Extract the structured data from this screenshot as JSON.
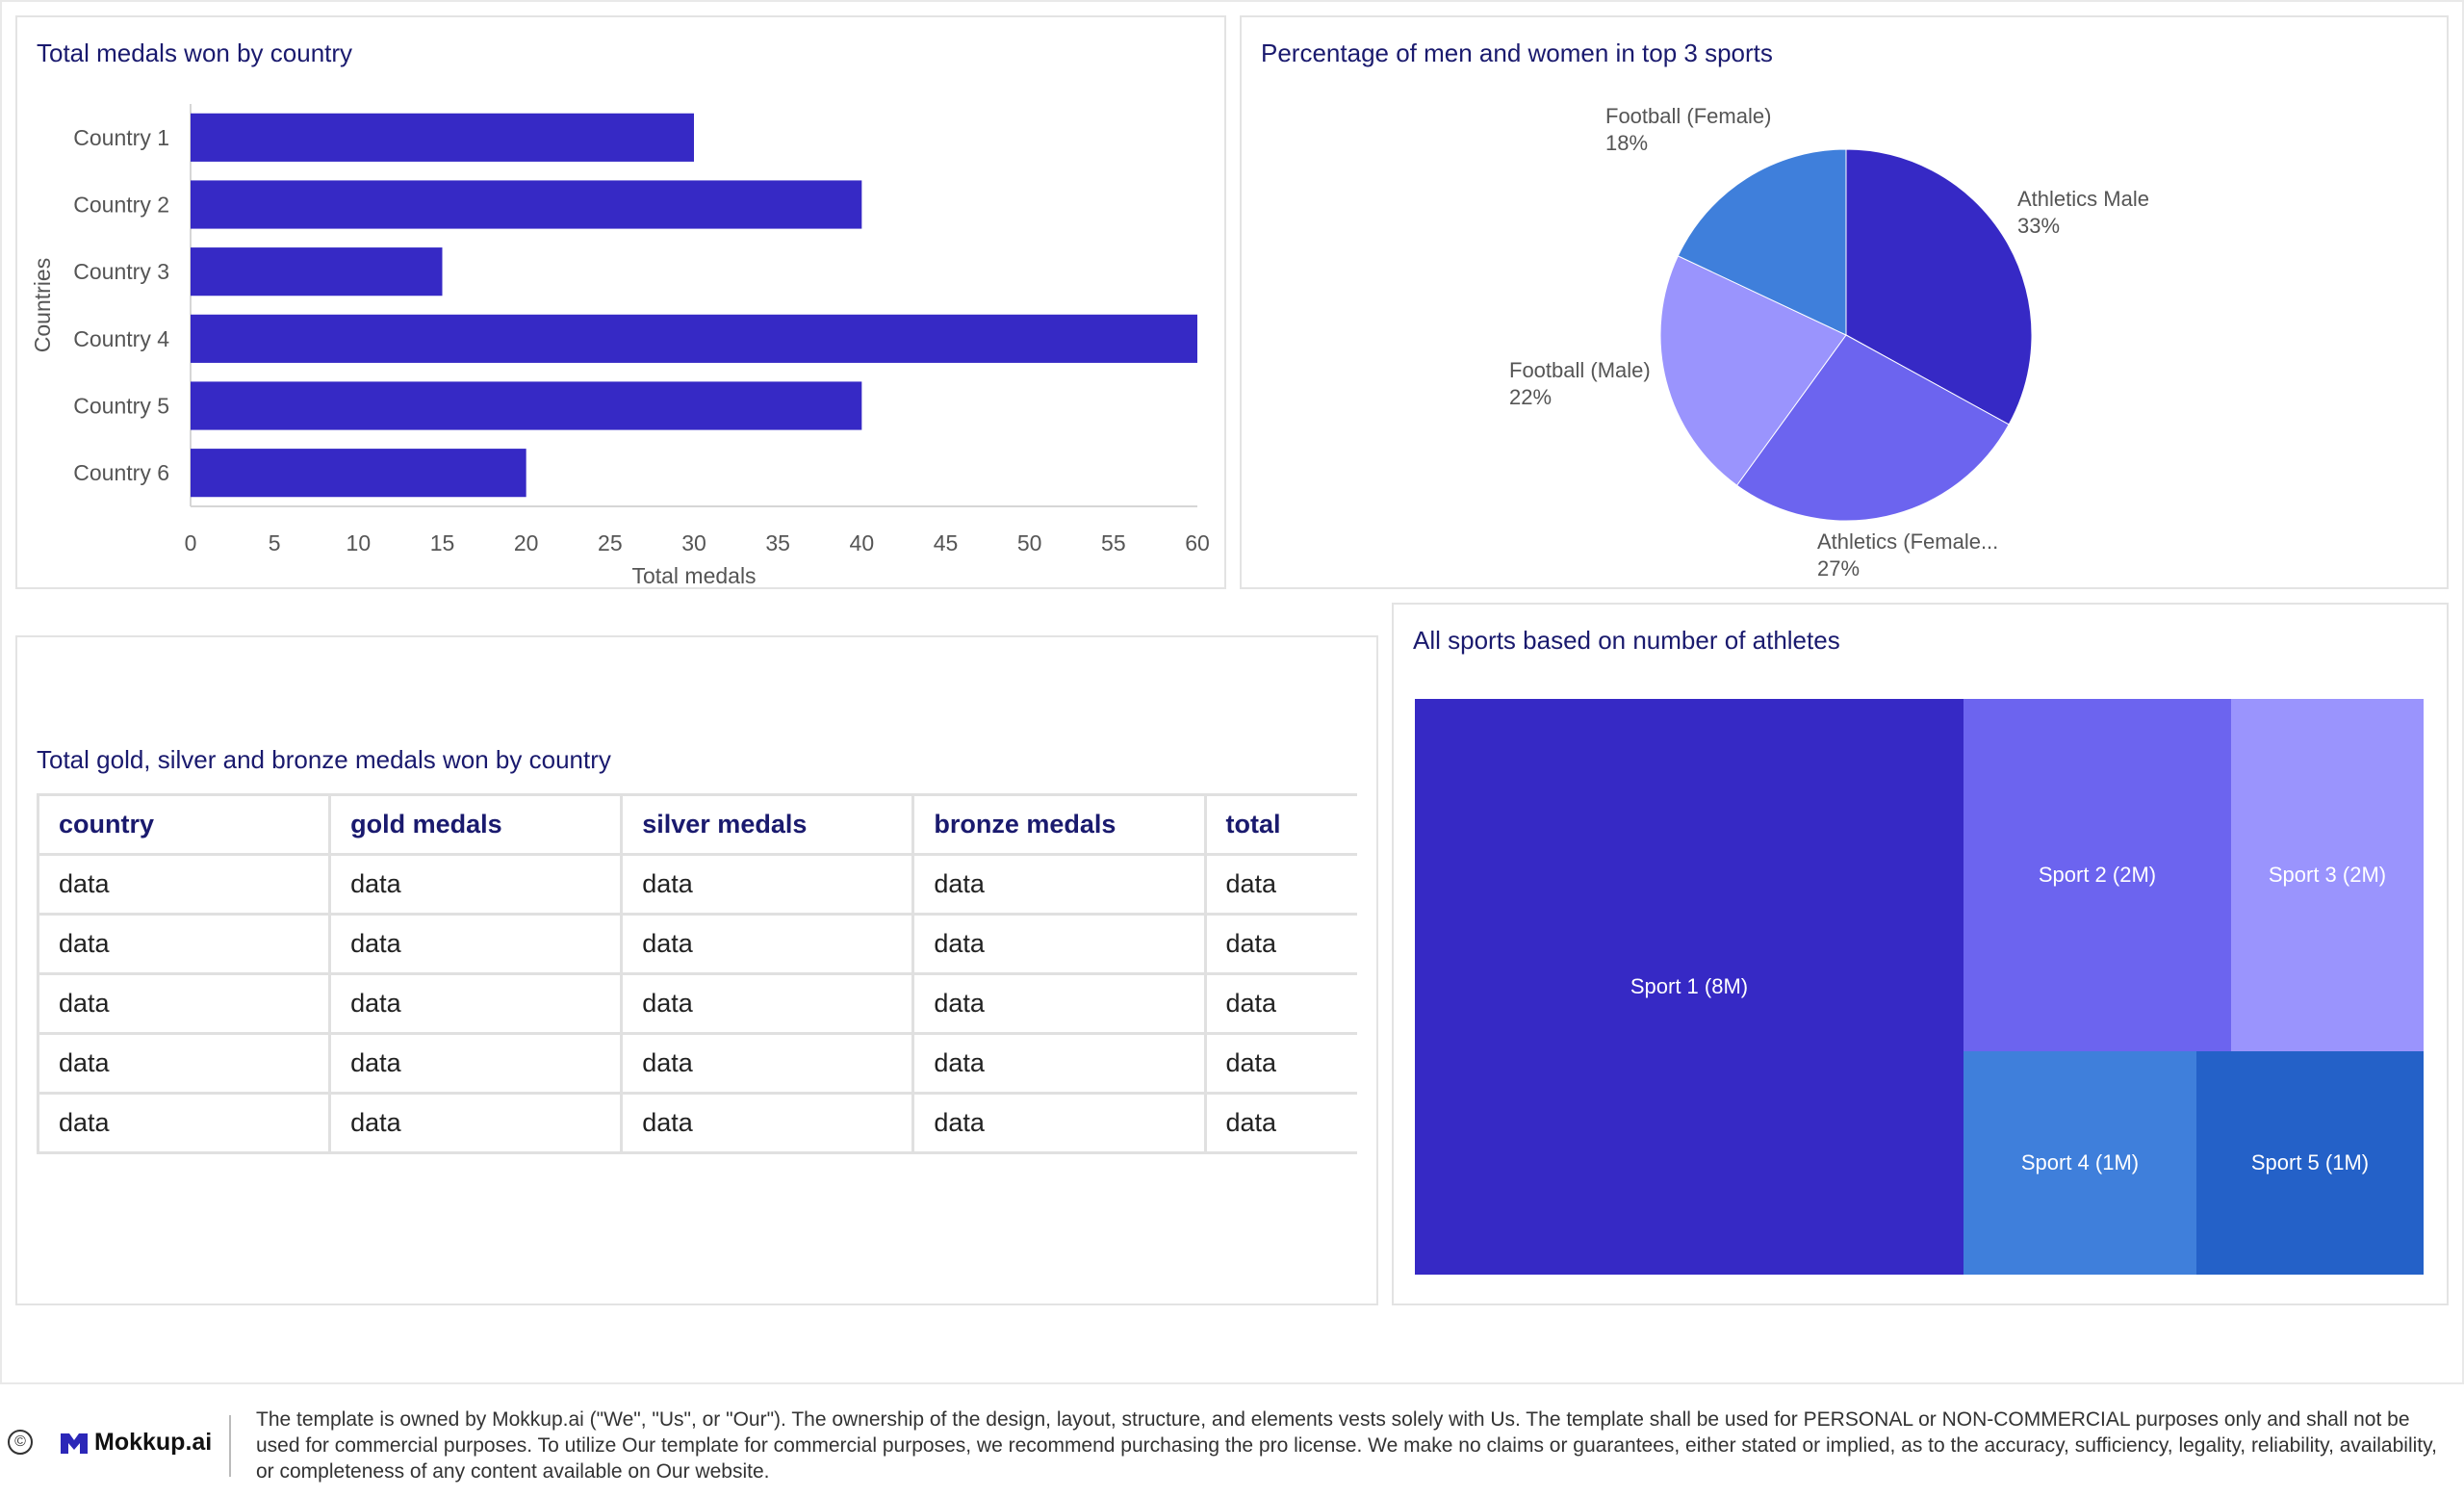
{
  "panels": {
    "bar_title": "Total medals won by country",
    "pie_title": "Percentage of men and women in top 3 sports",
    "table_title": "Total gold, silver and bronze medals won by country",
    "treemap_title": "All sports based on number of athletes"
  },
  "chart_data": [
    {
      "type": "bar",
      "orientation": "horizontal",
      "title": "Total medals won by country",
      "categories": [
        "Country 1",
        "Country 2",
        "Country 3",
        "Country 4",
        "Country 5",
        "Country 6"
      ],
      "values": [
        30,
        40,
        15,
        60,
        40,
        20
      ],
      "xlabel": "Total medals",
      "ylabel": "Countries",
      "xlim": [
        0,
        60
      ],
      "xticks": [
        "0",
        "5",
        "10",
        "15",
        "20",
        "25",
        "30",
        "35",
        "40",
        "45",
        "50",
        "55",
        "60"
      ],
      "color": "#3629c5",
      "grid": false
    },
    {
      "type": "pie",
      "title": "Percentage of men and women in top 3 sports",
      "slices": [
        {
          "label": "Athletics  Male",
          "value": 33,
          "value_label": "33%",
          "color": "#3629c5"
        },
        {
          "label": "Athletics (Female...",
          "value": 27,
          "value_label": "27%",
          "color": "#6c64ef"
        },
        {
          "label": "Football (Male)",
          "value": 22,
          "value_label": "22%",
          "color": "#9a94fd"
        },
        {
          "label": "Football (Female)",
          "value": 18,
          "value_label": "18%",
          "color": "#3f7fdb"
        }
      ]
    },
    {
      "type": "treemap",
      "title": "All sports based on number of athletes",
      "items": [
        {
          "label": "Sport 1 (8M)",
          "value": 8,
          "color": "#3629c5"
        },
        {
          "label": "Sport 2 (2M)",
          "value": 2,
          "color": "#6c64ef"
        },
        {
          "label": "Sport 3 (2M)",
          "value": 2,
          "color": "#9a94fd"
        },
        {
          "label": "Sport 4 (1M)",
          "value": 1,
          "color": "#3f7fdb"
        },
        {
          "label": "Sport 5 (1M)",
          "value": 1,
          "color": "#2461c8"
        }
      ]
    },
    {
      "type": "table",
      "title": "Total gold, silver and bronze medals won by country",
      "columns": [
        "country",
        "gold medals",
        "silver medals",
        "bronze medals",
        "total"
      ],
      "rows": [
        [
          "data",
          "data",
          "data",
          "data",
          "data"
        ],
        [
          "data",
          "data",
          "data",
          "data",
          "data"
        ],
        [
          "data",
          "data",
          "data",
          "data",
          "data"
        ],
        [
          "data",
          "data",
          "data",
          "data",
          "data"
        ],
        [
          "data",
          "data",
          "data",
          "data",
          "data"
        ]
      ]
    }
  ],
  "footer": {
    "copyright_symbol": "©",
    "brand": "Mokkup.ai",
    "brand_icon": "mokkup-logo-icon",
    "disclaimer": "The template is owned by Mokkup.ai (\"We\", \"Us\", or \"Our\"). The ownership of the design, layout, structure, and elements vests solely with Us. The template shall be used for PERSONAL or NON-COMMERCIAL purposes only and shall not be used for commercial purposes. To utilize Our template for commercial purposes, we recommend purchasing the pro license. We make no claims or guarantees, either stated or implied, as to the accuracy, sufficiency, legality, reliability, availability, or completeness of any content available on Our website."
  }
}
